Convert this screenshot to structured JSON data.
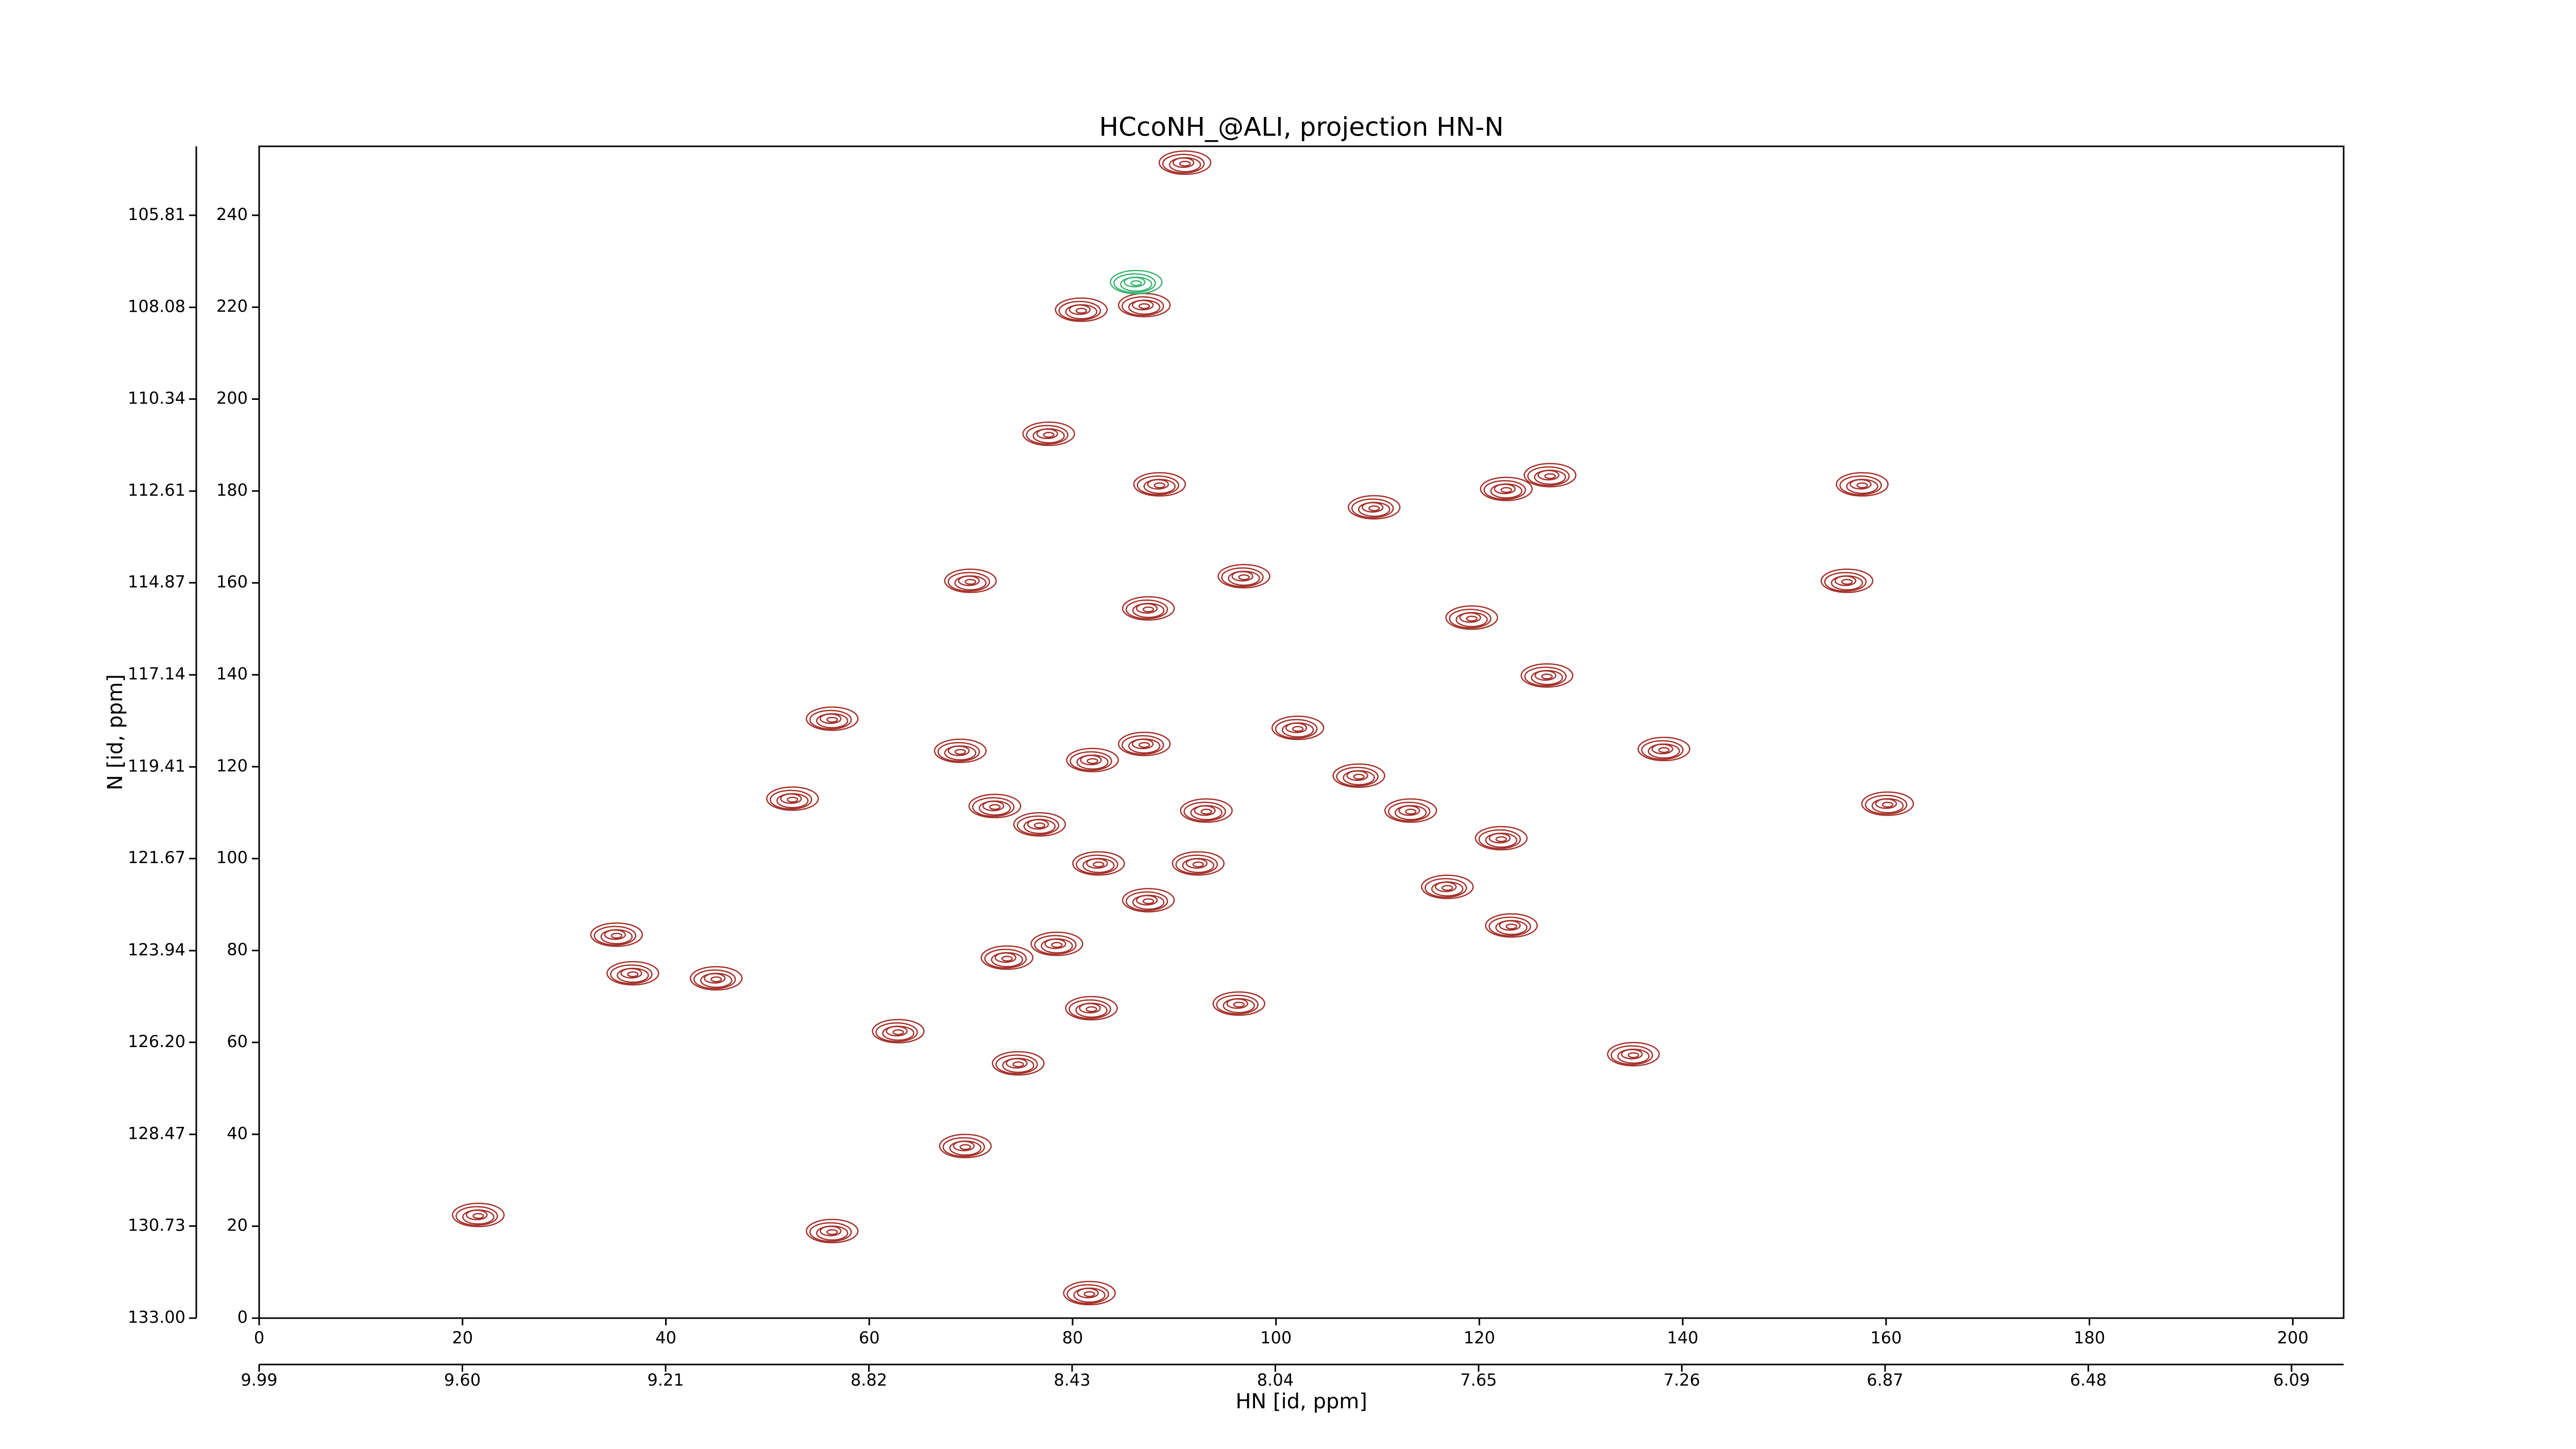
{
  "chart_data": {
    "type": "contour",
    "title": "HCcoNH_@ALI, projection HN-N",
    "xlabel": "HN [id, ppm]",
    "ylabel": "N [id, ppm]",
    "xlim": [
      0,
      205
    ],
    "xticks": [
      0,
      20,
      40,
      60,
      80,
      100,
      120,
      140,
      160,
      180,
      200
    ],
    "x2lim": [
      9.99,
      5.99
    ],
    "x2ticks": [
      9.99,
      {
        "value": 9.6,
        "label": "9.60"
      },
      9.21,
      8.82,
      8.43,
      8.04,
      7.65,
      7.26,
      6.87,
      6.48,
      6.09
    ],
    "ylim": [
      0,
      255
    ],
    "yticks": [
      0,
      20,
      40,
      60,
      80,
      100,
      120,
      140,
      160,
      180,
      200,
      220,
      240
    ],
    "y2lim": [
      133.0,
      104.11
    ],
    "y2ticks": [
      {
        "value": 133.0,
        "label": "133.00"
      },
      130.73,
      128.47,
      {
        "value": 126.2,
        "label": "126.20"
      },
      123.94,
      121.67,
      119.41,
      117.14,
      114.87,
      112.61,
      110.34,
      108.08,
      105.81
    ],
    "series": [
      {
        "color": "#a3302a",
        "x": [
          86.9,
          80.7,
          77.5,
          88.4,
          122.5,
          126.8,
          109.5,
          157.5,
          96.7,
          87.3,
          69.8,
          86.9,
          81.8,
          68.8,
          93,
          76.6,
          72.2,
          82.4,
          87.3,
          92.2,
          116.7,
          123,
          78.3,
          73.4,
          36.6,
          44.8,
          81.7,
          96.2,
          74.5,
          69.3,
          108,
          138,
          160,
          122,
          119.1,
          156,
          56.2,
          52.3,
          62.7,
          81.5,
          56.2,
          21.4,
          90.9,
          35,
          135,
          126.5,
          102,
          113.1
        ],
        "y": [
          220,
          219,
          192,
          181,
          180,
          183,
          176,
          181,
          161,
          154,
          160,
          124.5,
          121,
          123,
          110,
          107,
          111,
          98.5,
          90.5,
          98.5,
          93.4,
          85,
          81,
          78,
          74.6,
          73.5,
          67,
          68,
          55,
          37,
          117.6,
          123.4,
          111.5,
          104,
          152,
          160,
          130,
          112.6,
          62,
          5,
          18.5,
          22,
          251,
          83,
          57,
          139.4,
          128,
          110
        ]
      },
      {
        "color": "#3cb371",
        "x": [
          86.1
        ],
        "y": [
          225
        ]
      }
    ]
  }
}
